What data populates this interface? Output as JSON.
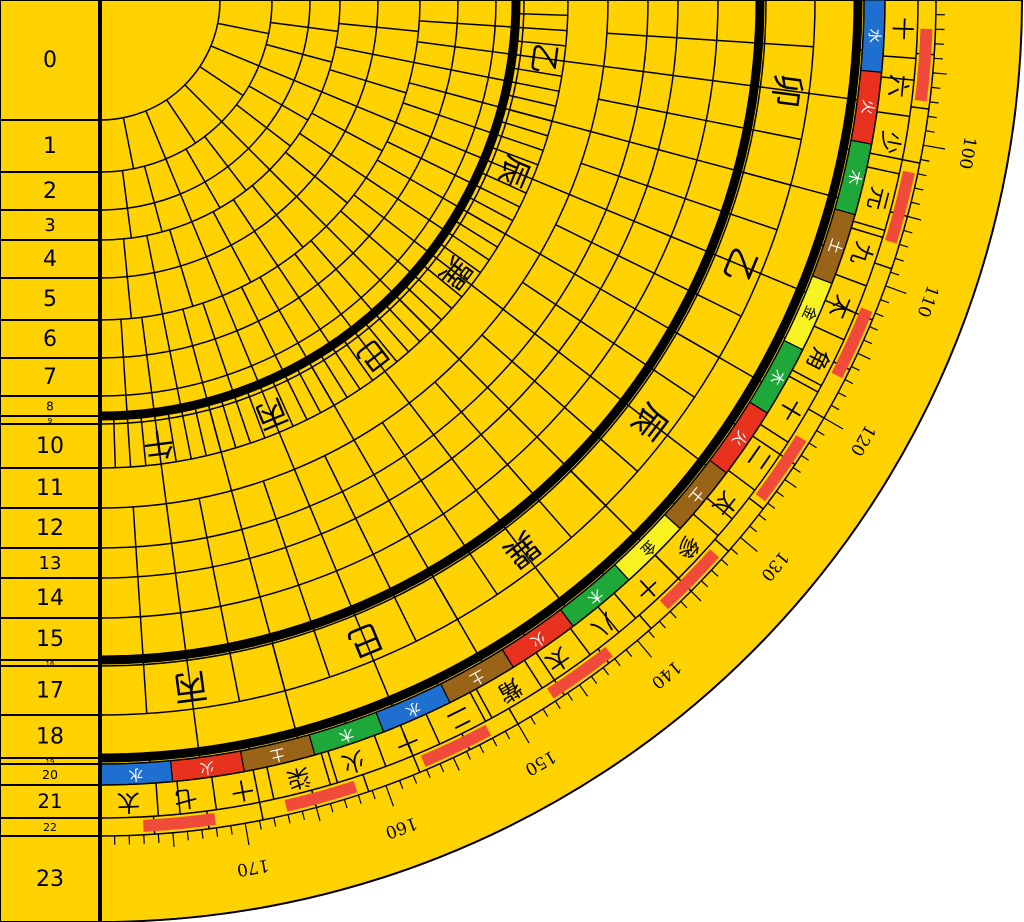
{
  "ring_index": [
    0,
    1,
    2,
    3,
    4,
    5,
    6,
    7,
    8,
    9,
    10,
    11,
    12,
    13,
    14,
    15,
    16,
    17,
    18,
    19,
    20,
    21,
    22,
    23
  ],
  "degree_labels": [
    100,
    110,
    120,
    130,
    140,
    150,
    160,
    170
  ],
  "rings": [
    {
      "ring": 10,
      "cells": [
        {
          "label": "乙"
        },
        {
          "label": "辰"
        },
        {
          "label": "巽"
        },
        {
          "label": "巳"
        },
        {
          "label": "丙"
        },
        {
          "label": "午"
        }
      ]
    },
    {
      "ring": 17,
      "cells": [
        {
          "label": "卯"
        },
        {
          "label": "乙"
        },
        {
          "label": "辰"
        },
        {
          "label": "巽"
        },
        {
          "label": "巳"
        },
        {
          "label": "丙"
        }
      ]
    },
    {
      "ring": 20,
      "cells": [
        {
          "label": "水",
          "color": "#1e6fd0"
        },
        {
          "label": "火",
          "color": "#e8321e"
        },
        {
          "label": "木",
          "color": "#1fa83a"
        },
        {
          "label": "土",
          "color": "#9a6418"
        },
        {
          "label": "金",
          "color": "#f7f320"
        },
        {
          "label": "木",
          "color": "#1fa83a"
        },
        {
          "label": "火",
          "color": "#e8321e"
        },
        {
          "label": "土",
          "color": "#9a6418"
        },
        {
          "label": "金",
          "color": "#f7f320"
        },
        {
          "label": "木",
          "color": "#1fa83a"
        },
        {
          "label": "火",
          "color": "#e8321e"
        },
        {
          "label": "土",
          "color": "#9a6418"
        },
        {
          "label": "水",
          "color": "#1e6fd0"
        },
        {
          "label": "木",
          "color": "#1fa83a"
        },
        {
          "label": "土",
          "color": "#9a6418"
        },
        {
          "label": "火",
          "color": "#e8321e"
        },
        {
          "label": "水",
          "color": "#1e6fd0"
        }
      ]
    },
    {
      "ring": 21,
      "cells": [
        {
          "label": "十"
        },
        {
          "label": "六"
        },
        {
          "label": "少"
        },
        {
          "label": "元"
        },
        {
          "label": "九"
        },
        {
          "label": "太"
        },
        {
          "label": "角"
        },
        {
          "label": "十"
        },
        {
          "label": "二"
        },
        {
          "label": "太"
        },
        {
          "label": "參"
        },
        {
          "label": "十"
        },
        {
          "label": "八"
        },
        {
          "label": "太"
        },
        {
          "label": "觜"
        },
        {
          "label": "二"
        },
        {
          "label": "十"
        },
        {
          "label": "火"
        },
        {
          "label": "柒"
        },
        {
          "label": "十"
        },
        {
          "label": "七"
        },
        {
          "label": "太"
        }
      ]
    }
  ]
}
